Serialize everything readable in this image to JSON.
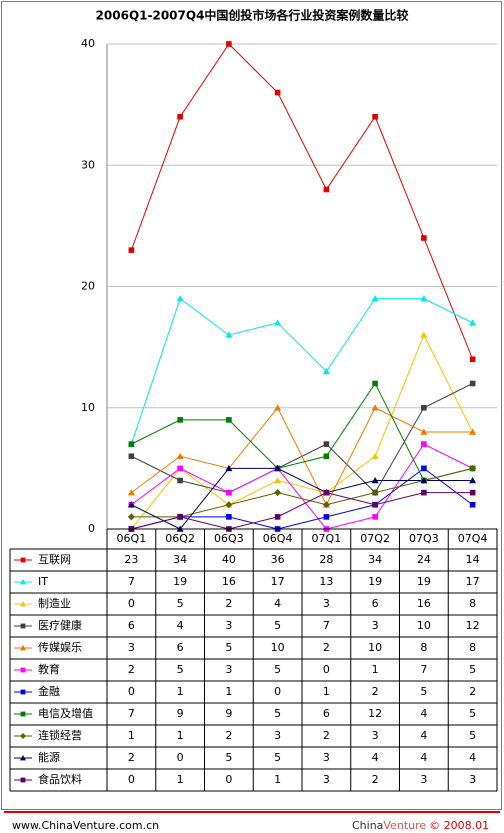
{
  "chart_data": {
    "type": "line",
    "title": "2006Q1-2007Q4中国创投市场各行业投资案例数量比较",
    "categories": [
      "06Q1",
      "06Q2",
      "06Q3",
      "06Q4",
      "07Q1",
      "07Q2",
      "07Q3",
      "07Q4"
    ],
    "ylim": [
      0,
      40
    ],
    "yticks": [
      0,
      10,
      20,
      30,
      40
    ],
    "grid": true,
    "data_table": true,
    "series": [
      {
        "name": "互联网",
        "color": "#e00000",
        "marker": "square",
        "values": [
          23,
          34,
          40,
          36,
          28,
          34,
          24,
          14
        ]
      },
      {
        "name": "IT",
        "color": "#00e8f0",
        "marker": "triangle",
        "values": [
          7,
          19,
          16,
          17,
          13,
          19,
          19,
          17
        ]
      },
      {
        "name": "制造业",
        "color": "#f0c800",
        "marker": "triangle",
        "values": [
          0,
          5,
          2,
          4,
          3,
          6,
          16,
          8
        ]
      },
      {
        "name": "医疗健康",
        "color": "#404040",
        "marker": "square",
        "values": [
          6,
          4,
          3,
          5,
          7,
          3,
          10,
          12
        ]
      },
      {
        "name": "传媒娱乐",
        "color": "#f07800",
        "marker": "triangle",
        "values": [
          3,
          6,
          5,
          10,
          2,
          10,
          8,
          8
        ]
      },
      {
        "name": "教育",
        "color": "#ff00ff",
        "marker": "square",
        "values": [
          2,
          5,
          3,
          5,
          0,
          1,
          7,
          5
        ]
      },
      {
        "name": "金融",
        "color": "#0000e0",
        "marker": "square",
        "values": [
          0,
          1,
          1,
          0,
          1,
          2,
          5,
          2
        ]
      },
      {
        "name": "电信及增值",
        "color": "#008000",
        "marker": "square",
        "values": [
          7,
          9,
          9,
          5,
          6,
          12,
          4,
          5
        ]
      },
      {
        "name": "连锁经营",
        "color": "#606000",
        "marker": "diamond",
        "values": [
          1,
          1,
          2,
          3,
          2,
          3,
          4,
          5
        ]
      },
      {
        "name": "能源",
        "color": "#000060",
        "marker": "triangle",
        "values": [
          2,
          0,
          5,
          5,
          3,
          4,
          4,
          4
        ]
      },
      {
        "name": "食品饮料",
        "color": "#600060",
        "marker": "square",
        "values": [
          0,
          1,
          0,
          1,
          3,
          2,
          3,
          3
        ]
      }
    ]
  },
  "footer": {
    "source": "www.ChinaVenture.com.cn",
    "brand": [
      "China",
      "Venture"
    ],
    "copyright": "© 2008.01"
  }
}
